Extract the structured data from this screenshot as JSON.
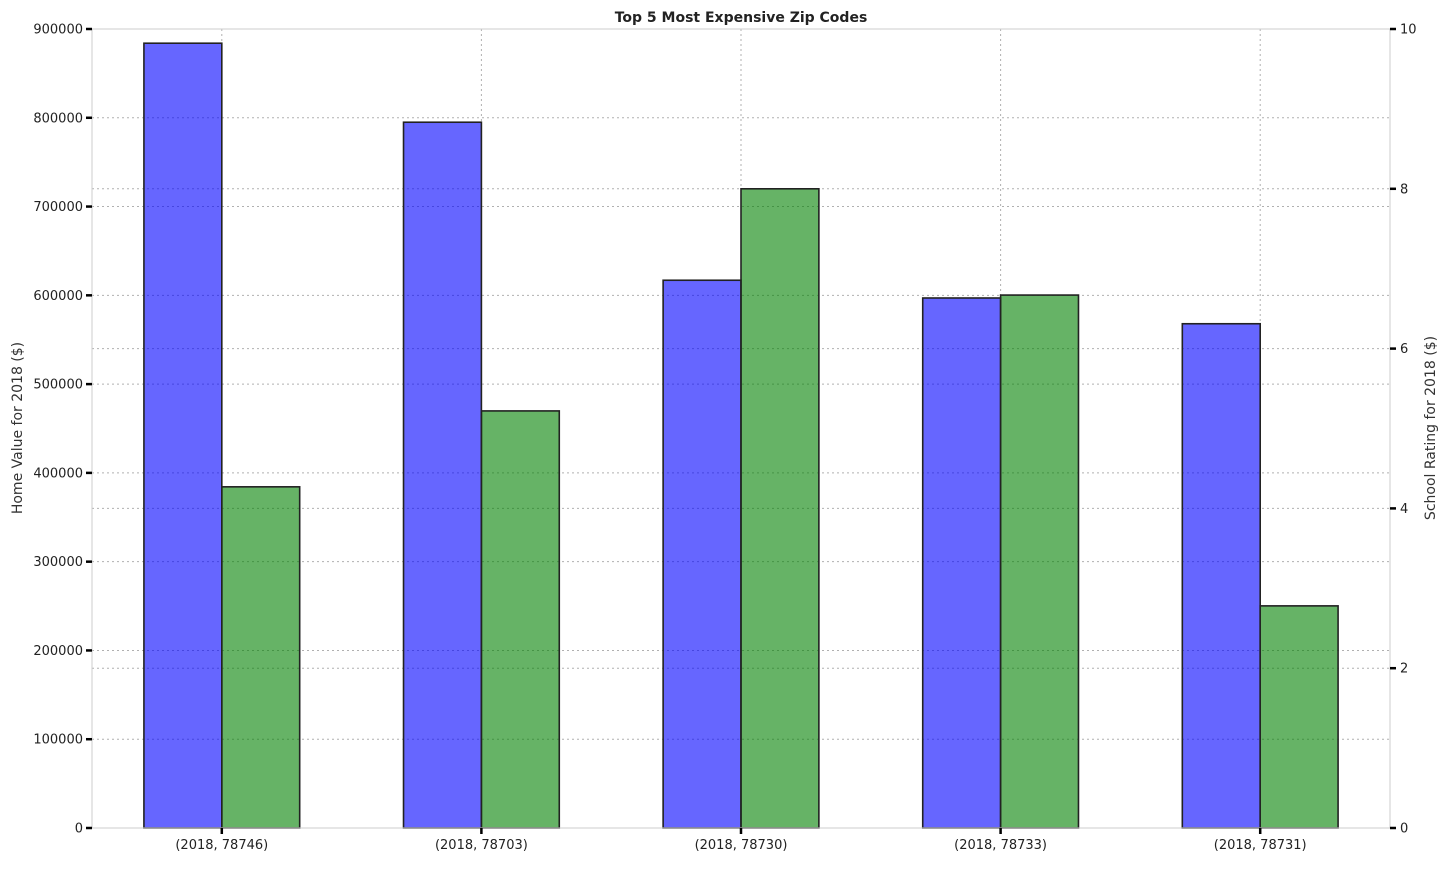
{
  "chart_data": {
    "type": "bar",
    "title": "Top 5 Most Expensive Zip Codes",
    "categories": [
      "(2018, 78746)",
      "(2018, 78703)",
      "(2018, 78730)",
      "(2018, 78733)",
      "(2018, 78731)"
    ],
    "series": [
      {
        "axis": "left",
        "color": "#0000ff",
        "opacity": 0.6,
        "values": [
          884000,
          795000,
          617000,
          597000,
          568000
        ]
      },
      {
        "axis": "right",
        "color": "#008000",
        "opacity": 0.6,
        "values": [
          4.27,
          5.22,
          8.0,
          6.67,
          2.78
        ]
      }
    ],
    "ylabel": "Home Value for 2018 ($)",
    "ylim": [
      0,
      900000
    ],
    "yticks": [
      "0",
      "100000",
      "200000",
      "300000",
      "400000",
      "500000",
      "600000",
      "700000",
      "800000",
      "900000"
    ],
    "y2label": "School Rating for 2018 ($)",
    "y2lim": [
      0,
      10
    ],
    "y2ticks": [
      "0",
      "2",
      "4",
      "6",
      "8",
      "10"
    ],
    "grid": true,
    "legend": "none"
  }
}
